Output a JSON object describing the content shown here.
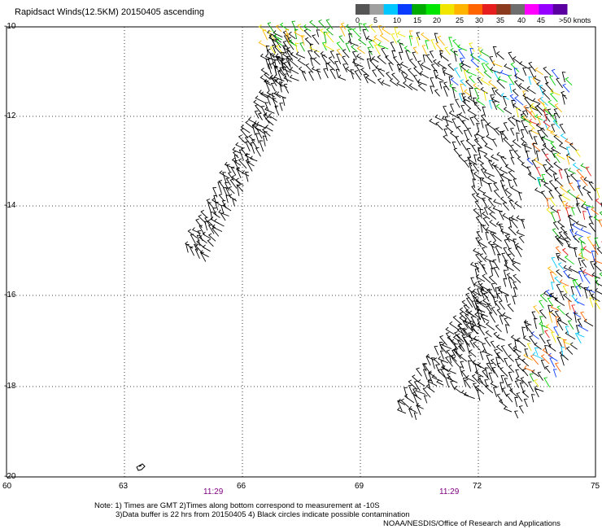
{
  "header": {
    "title": "Rapidsact Winds(12.5KM) 20150405 ascending"
  },
  "legend": {
    "labels": [
      "0",
      "5",
      "10",
      "15",
      "20",
      "25",
      "30",
      "35",
      "40",
      "45",
      ">50 knots"
    ],
    "colors": [
      "#555555",
      "#a0a0a0",
      "#00c8ff",
      "#0a3cff",
      "#00aa00",
      "#00e600",
      "#f0e600",
      "#ffb400",
      "#ff6400",
      "#e61e1e",
      "#8b3a1e",
      "#6e6e6e",
      "#ff00ff",
      "#9600ff",
      "#5a00a0"
    ]
  },
  "axes": {
    "y_ticks": [
      "-10",
      "-12",
      "-14",
      "-16",
      "-18",
      "-20"
    ],
    "x_ticks": [
      "60",
      "63",
      "66",
      "69",
      "72",
      "75"
    ]
  },
  "times": {
    "left": "11:29",
    "right": "11:29",
    "color": "#800080"
  },
  "notes": {
    "line1": "Note: 1) Times are GMT 2)Times along bottom correspond to measurement at -10S",
    "line2": "3)Data buffer is 22 hrs from 20150405 4) Black circles indicate possible contamination",
    "line3": "NOAA/NESDIS/Office of Research and Applications"
  }
}
